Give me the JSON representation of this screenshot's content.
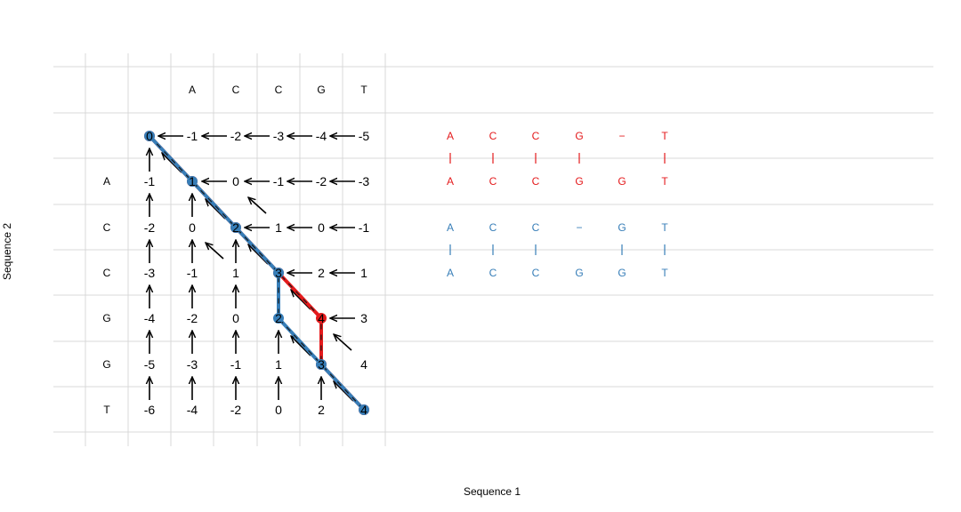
{
  "axis": {
    "x_label": "Sequence 1",
    "y_label": "Sequence 2"
  },
  "sequences": {
    "seq1": [
      "A",
      "C",
      "C",
      "G",
      "T"
    ],
    "seq2": [
      "A",
      "C",
      "C",
      "G",
      "G",
      "T"
    ]
  },
  "score_matrix": [
    [
      0,
      -1,
      -2,
      -3,
      -4,
      -5
    ],
    [
      -1,
      1,
      0,
      -1,
      -2,
      -3
    ],
    [
      -2,
      0,
      2,
      1,
      0,
      -1
    ],
    [
      -3,
      -1,
      1,
      3,
      2,
      1
    ],
    [
      -4,
      -2,
      0,
      2,
      4,
      3
    ],
    [
      -5,
      -3,
      -1,
      1,
      3,
      4
    ],
    [
      -6,
      -4,
      -2,
      0,
      2,
      4
    ]
  ],
  "pointers": [
    {
      "row": 0,
      "col": 0,
      "dirs": [
        "up"
      ]
    },
    {
      "row": 0,
      "col": 1,
      "dirs": [
        "left"
      ]
    },
    {
      "row": 0,
      "col": 2,
      "dirs": [
        "left"
      ]
    },
    {
      "row": 0,
      "col": 3,
      "dirs": [
        "left"
      ]
    },
    {
      "row": 0,
      "col": 4,
      "dirs": [
        "left"
      ]
    },
    {
      "row": 0,
      "col": 5,
      "dirs": [
        "left"
      ]
    },
    {
      "row": 1,
      "col": 0,
      "dirs": [
        "up"
      ]
    },
    {
      "row": 1,
      "col": 1,
      "dirs": [
        "diag",
        "up"
      ]
    },
    {
      "row": 1,
      "col": 2,
      "dirs": [
        "left"
      ]
    },
    {
      "row": 1,
      "col": 3,
      "dirs": [
        "left"
      ]
    },
    {
      "row": 1,
      "col": 4,
      "dirs": [
        "left"
      ]
    },
    {
      "row": 1,
      "col": 5,
      "dirs": [
        "left"
      ]
    },
    {
      "row": 2,
      "col": 0,
      "dirs": [
        "up"
      ]
    },
    {
      "row": 2,
      "col": 1,
      "dirs": [
        "up"
      ]
    },
    {
      "row": 2,
      "col": 2,
      "dirs": [
        "diag",
        "up"
      ]
    },
    {
      "row": 2,
      "col": 3,
      "dirs": [
        "left",
        "diag_start"
      ]
    },
    {
      "row": 2,
      "col": 4,
      "dirs": [
        "left"
      ]
    },
    {
      "row": 2,
      "col": 5,
      "dirs": [
        "left"
      ]
    },
    {
      "row": 3,
      "col": 0,
      "dirs": [
        "up"
      ]
    },
    {
      "row": 3,
      "col": 1,
      "dirs": [
        "up"
      ]
    },
    {
      "row": 3,
      "col": 2,
      "dirs": [
        "up",
        "diag_start"
      ]
    },
    {
      "row": 3,
      "col": 3,
      "dirs": [
        "diag"
      ]
    },
    {
      "row": 3,
      "col": 4,
      "dirs": [
        "left"
      ]
    },
    {
      "row": 3,
      "col": 5,
      "dirs": [
        "left"
      ]
    },
    {
      "row": 4,
      "col": 0,
      "dirs": [
        "up"
      ]
    },
    {
      "row": 4,
      "col": 1,
      "dirs": [
        "up"
      ]
    },
    {
      "row": 4,
      "col": 2,
      "dirs": [
        "up"
      ]
    },
    {
      "row": 4,
      "col": 3,
      "dirs": [
        "up"
      ]
    },
    {
      "row": 4,
      "col": 4,
      "dirs": [
        "diag"
      ]
    },
    {
      "row": 4,
      "col": 5,
      "dirs": [
        "left"
      ]
    },
    {
      "row": 5,
      "col": 0,
      "dirs": [
        "up"
      ]
    },
    {
      "row": 5,
      "col": 1,
      "dirs": [
        "up"
      ]
    },
    {
      "row": 5,
      "col": 2,
      "dirs": [
        "up"
      ]
    },
    {
      "row": 5,
      "col": 3,
      "dirs": [
        "up"
      ]
    },
    {
      "row": 5,
      "col": 4,
      "dirs": [
        "up",
        "diag"
      ]
    },
    {
      "row": 5,
      "col": 5,
      "dirs": [
        "diag_start"
      ]
    },
    {
      "row": 6,
      "col": 0,
      "dirs": [
        "up"
      ]
    },
    {
      "row": 6,
      "col": 1,
      "dirs": [
        "up"
      ]
    },
    {
      "row": 6,
      "col": 2,
      "dirs": [
        "up"
      ]
    },
    {
      "row": 6,
      "col": 3,
      "dirs": [
        "up"
      ]
    },
    {
      "row": 6,
      "col": 4,
      "dirs": [
        "up"
      ]
    },
    {
      "row": 6,
      "col": 5,
      "dirs": [
        "diag"
      ]
    }
  ],
  "paths": [
    {
      "color": "#e41a1c",
      "cells": [
        [
          0,
          0
        ],
        [
          1,
          1
        ],
        [
          2,
          2
        ],
        [
          3,
          3
        ],
        [
          4,
          4
        ],
        [
          5,
          4
        ],
        [
          6,
          5
        ]
      ],
      "alignment": {
        "top": [
          "A",
          "C",
          "C",
          "G",
          "−",
          "T"
        ],
        "bars": [
          "|",
          "|",
          "|",
          "|",
          "",
          "|"
        ],
        "bottom": [
          "A",
          "C",
          "C",
          "G",
          "G",
          "T"
        ]
      }
    },
    {
      "color": "#377eb8",
      "cells": [
        [
          0,
          0
        ],
        [
          1,
          1
        ],
        [
          2,
          2
        ],
        [
          3,
          3
        ],
        [
          4,
          3
        ],
        [
          5,
          4
        ],
        [
          6,
          5
        ]
      ],
      "alignment": {
        "top": [
          "A",
          "C",
          "C",
          "−",
          "G",
          "T"
        ],
        "bars": [
          "|",
          "|",
          "|",
          "",
          "|",
          "|"
        ],
        "bottom": [
          "A",
          "C",
          "C",
          "G",
          "G",
          "T"
        ]
      }
    }
  ],
  "colors": {
    "grid": "#d9d9d9",
    "text": "#000000",
    "arrow": "#000000",
    "path_red": "#e41a1c",
    "path_blue": "#377eb8"
  }
}
